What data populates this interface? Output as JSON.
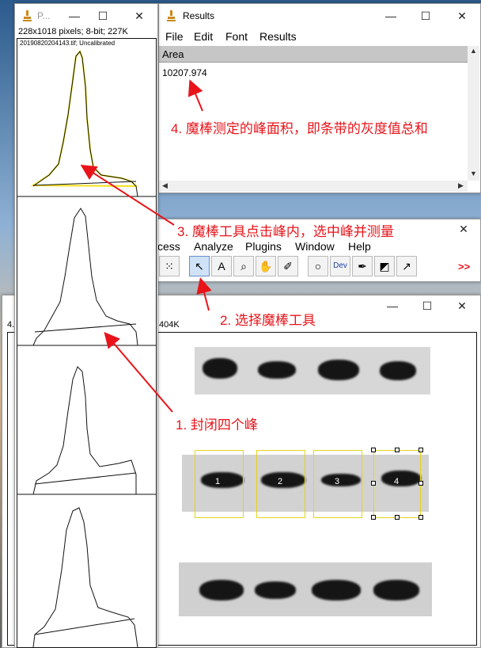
{
  "plot_window": {
    "title": "P...",
    "info": "228x1018 pixels; 8-bit; 227K",
    "image_label": "20190820204143.tif; Uncalibrated"
  },
  "results_window": {
    "title": "Results",
    "menu": [
      "File",
      "Edit",
      "Font",
      "Results"
    ],
    "column_header": "Area",
    "value": "10207.974"
  },
  "imagej_window": {
    "menu": [
      "cess",
      "Analyze",
      "Plugins",
      "Window",
      "Help"
    ],
    "tools": [
      {
        "name": "selection-brush-icon",
        "glyph": "⁙"
      },
      {
        "name": "wand-tool-icon",
        "glyph": "↖",
        "active": true
      },
      {
        "name": "text-tool-icon",
        "glyph": "A"
      },
      {
        "name": "magnifier-tool-icon",
        "glyph": "⌕"
      },
      {
        "name": "hand-tool-icon",
        "glyph": "✋"
      },
      {
        "name": "color-picker-icon",
        "glyph": "✐"
      },
      {
        "name": "zoom-icon",
        "glyph": "○"
      },
      {
        "name": "dev-tool-icon",
        "glyph": "Dev"
      },
      {
        "name": "brush-icon",
        "glyph": "✒"
      },
      {
        "name": "flood-fill-icon",
        "glyph": "◩"
      },
      {
        "name": "pipette-icon",
        "glyph": "↗"
      }
    ],
    "more_label": ">>"
  },
  "gel_window": {
    "info_left": "4.",
    "info_right": "404K",
    "lanes": [
      "1",
      "2",
      "3",
      "4"
    ]
  },
  "annotations": {
    "step1": "1. 封闭四个峰",
    "step2": "2. 选择魔棒工具",
    "step3": "3. 魔棒工具点击峰内，选中峰并测量",
    "step4": "4. 魔棒测定的峰面积，即条带的灰度值总和"
  },
  "colors": {
    "annotation": "#e8141a",
    "selection": "#e4d51c",
    "peak_highlight": "#f2e21a"
  }
}
